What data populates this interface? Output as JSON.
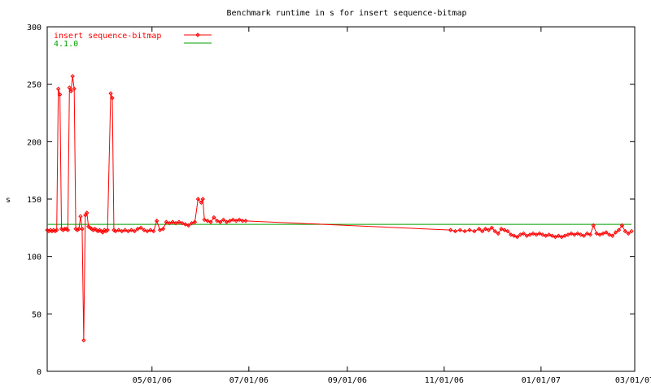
{
  "chart_data": {
    "type": "line",
    "title": "Benchmark runtime in s for insert sequence-bitmap",
    "xlabel": "",
    "ylabel": "s",
    "xlim": [
      "2006-02-24",
      "2007-03-01"
    ],
    "ylim": [
      0,
      300
    ],
    "grid": false,
    "legend_position": "top-left",
    "y_ticks": [
      0,
      50,
      100,
      150,
      200,
      250,
      300
    ],
    "x_ticks": [
      {
        "date": "2006-05-01",
        "label": "05/01/06"
      },
      {
        "date": "2006-07-01",
        "label": "07/01/06"
      },
      {
        "date": "2006-09-01",
        "label": "09/01/06"
      },
      {
        "date": "2006-11-01",
        "label": "11/01/06"
      },
      {
        "date": "2007-01-01",
        "label": "01/01/07"
      },
      {
        "date": "2007-03-01",
        "label": "03/01/07"
      }
    ],
    "colors": {
      "series": "#ff0000",
      "baseline": "#00a000",
      "axis": "#000000"
    },
    "series": [
      {
        "name": "insert sequence-bitmap",
        "marker": "diamond",
        "points": [
          [
            "2006-02-24",
            123
          ],
          [
            "2006-02-25",
            122
          ],
          [
            "2006-02-26",
            123
          ],
          [
            "2006-02-27",
            122
          ],
          [
            "2006-02-28",
            123
          ],
          [
            "2006-03-01",
            122
          ],
          [
            "2006-03-02",
            123
          ],
          [
            "2006-03-03",
            246
          ],
          [
            "2006-03-04",
            241
          ],
          [
            "2006-03-05",
            124
          ],
          [
            "2006-03-06",
            123
          ],
          [
            "2006-03-07",
            124
          ],
          [
            "2006-03-08",
            124
          ],
          [
            "2006-03-09",
            123
          ],
          [
            "2006-03-10",
            247
          ],
          [
            "2006-03-11",
            244
          ],
          [
            "2006-03-12",
            257
          ],
          [
            "2006-03-13",
            246
          ],
          [
            "2006-03-14",
            124
          ],
          [
            "2006-03-15",
            123
          ],
          [
            "2006-03-16",
            124
          ],
          [
            "2006-03-17",
            135
          ],
          [
            "2006-03-18",
            124
          ],
          [
            "2006-03-19",
            27
          ],
          [
            "2006-03-20",
            136
          ],
          [
            "2006-03-21",
            138
          ],
          [
            "2006-03-22",
            126
          ],
          [
            "2006-03-23",
            125
          ],
          [
            "2006-03-24",
            124
          ],
          [
            "2006-03-25",
            123
          ],
          [
            "2006-03-26",
            124
          ],
          [
            "2006-03-27",
            123
          ],
          [
            "2006-03-28",
            122
          ],
          [
            "2006-03-29",
            123
          ],
          [
            "2006-03-30",
            122
          ],
          [
            "2006-03-31",
            121
          ],
          [
            "2006-04-01",
            123
          ],
          [
            "2006-04-02",
            122
          ],
          [
            "2006-04-03",
            123
          ],
          [
            "2006-04-05",
            242
          ],
          [
            "2006-04-06",
            238
          ],
          [
            "2006-04-07",
            123
          ],
          [
            "2006-04-08",
            122
          ],
          [
            "2006-04-10",
            123
          ],
          [
            "2006-04-12",
            122
          ],
          [
            "2006-04-14",
            123
          ],
          [
            "2006-04-16",
            122
          ],
          [
            "2006-04-18",
            123
          ],
          [
            "2006-04-20",
            122
          ],
          [
            "2006-04-22",
            124
          ],
          [
            "2006-04-24",
            125
          ],
          [
            "2006-04-26",
            123
          ],
          [
            "2006-04-28",
            122
          ],
          [
            "2006-04-30",
            123
          ],
          [
            "2006-05-02",
            122
          ],
          [
            "2006-05-04",
            131
          ],
          [
            "2006-05-06",
            123
          ],
          [
            "2006-05-08",
            124
          ],
          [
            "2006-05-10",
            130
          ],
          [
            "2006-05-12",
            129
          ],
          [
            "2006-05-14",
            130
          ],
          [
            "2006-05-16",
            129
          ],
          [
            "2006-05-18",
            130
          ],
          [
            "2006-05-20",
            129
          ],
          [
            "2006-05-22",
            128
          ],
          [
            "2006-05-24",
            127
          ],
          [
            "2006-05-26",
            129
          ],
          [
            "2006-05-28",
            130
          ],
          [
            "2006-05-30",
            150
          ],
          [
            "2006-06-01",
            147
          ],
          [
            "2006-06-02",
            150
          ],
          [
            "2006-06-03",
            132
          ],
          [
            "2006-06-05",
            131
          ],
          [
            "2006-06-07",
            130
          ],
          [
            "2006-06-09",
            134
          ],
          [
            "2006-06-11",
            131
          ],
          [
            "2006-06-13",
            130
          ],
          [
            "2006-06-15",
            132
          ],
          [
            "2006-06-17",
            130
          ],
          [
            "2006-06-19",
            131
          ],
          [
            "2006-06-21",
            132
          ],
          [
            "2006-06-23",
            131
          ],
          [
            "2006-06-25",
            132
          ],
          [
            "2006-06-27",
            131
          ],
          [
            "2006-06-29",
            131
          ],
          [
            "2006-11-05",
            123
          ],
          [
            "2006-11-08",
            122
          ],
          [
            "2006-11-11",
            123
          ],
          [
            "2006-11-14",
            122
          ],
          [
            "2006-11-17",
            123
          ],
          [
            "2006-11-20",
            122
          ],
          [
            "2006-11-23",
            124
          ],
          [
            "2006-11-25",
            122
          ],
          [
            "2006-11-27",
            124
          ],
          [
            "2006-11-29",
            123
          ],
          [
            "2006-12-01",
            125
          ],
          [
            "2006-12-03",
            122
          ],
          [
            "2006-12-05",
            120
          ],
          [
            "2006-12-07",
            124
          ],
          [
            "2006-12-09",
            123
          ],
          [
            "2006-12-11",
            122
          ],
          [
            "2006-12-13",
            119
          ],
          [
            "2006-12-15",
            118
          ],
          [
            "2006-12-17",
            117
          ],
          [
            "2006-12-19",
            119
          ],
          [
            "2006-12-21",
            120
          ],
          [
            "2006-12-23",
            118
          ],
          [
            "2006-12-25",
            119
          ],
          [
            "2006-12-27",
            120
          ],
          [
            "2006-12-29",
            119
          ],
          [
            "2006-12-31",
            120
          ],
          [
            "2007-01-02",
            119
          ],
          [
            "2007-01-04",
            118
          ],
          [
            "2007-01-06",
            119
          ],
          [
            "2007-01-08",
            118
          ],
          [
            "2007-01-10",
            117
          ],
          [
            "2007-01-12",
            118
          ],
          [
            "2007-01-14",
            117
          ],
          [
            "2007-01-16",
            118
          ],
          [
            "2007-01-18",
            119
          ],
          [
            "2007-01-20",
            120
          ],
          [
            "2007-01-22",
            119
          ],
          [
            "2007-01-24",
            120
          ],
          [
            "2007-01-26",
            119
          ],
          [
            "2007-01-28",
            118
          ],
          [
            "2007-01-30",
            120
          ],
          [
            "2007-02-01",
            119
          ],
          [
            "2007-02-03",
            127
          ],
          [
            "2007-02-05",
            120
          ],
          [
            "2007-02-07",
            119
          ],
          [
            "2007-02-09",
            120
          ],
          [
            "2007-02-11",
            121
          ],
          [
            "2007-02-13",
            119
          ],
          [
            "2007-02-15",
            118
          ],
          [
            "2007-02-17",
            121
          ],
          [
            "2007-02-19",
            123
          ],
          [
            "2007-02-21",
            127
          ],
          [
            "2007-02-23",
            122
          ],
          [
            "2007-02-25",
            120
          ],
          [
            "2007-02-27",
            122
          ]
        ]
      },
      {
        "name": "4.1.0",
        "points": [
          [
            "2006-02-24",
            128
          ],
          [
            "2007-02-27",
            128
          ]
        ]
      }
    ]
  }
}
